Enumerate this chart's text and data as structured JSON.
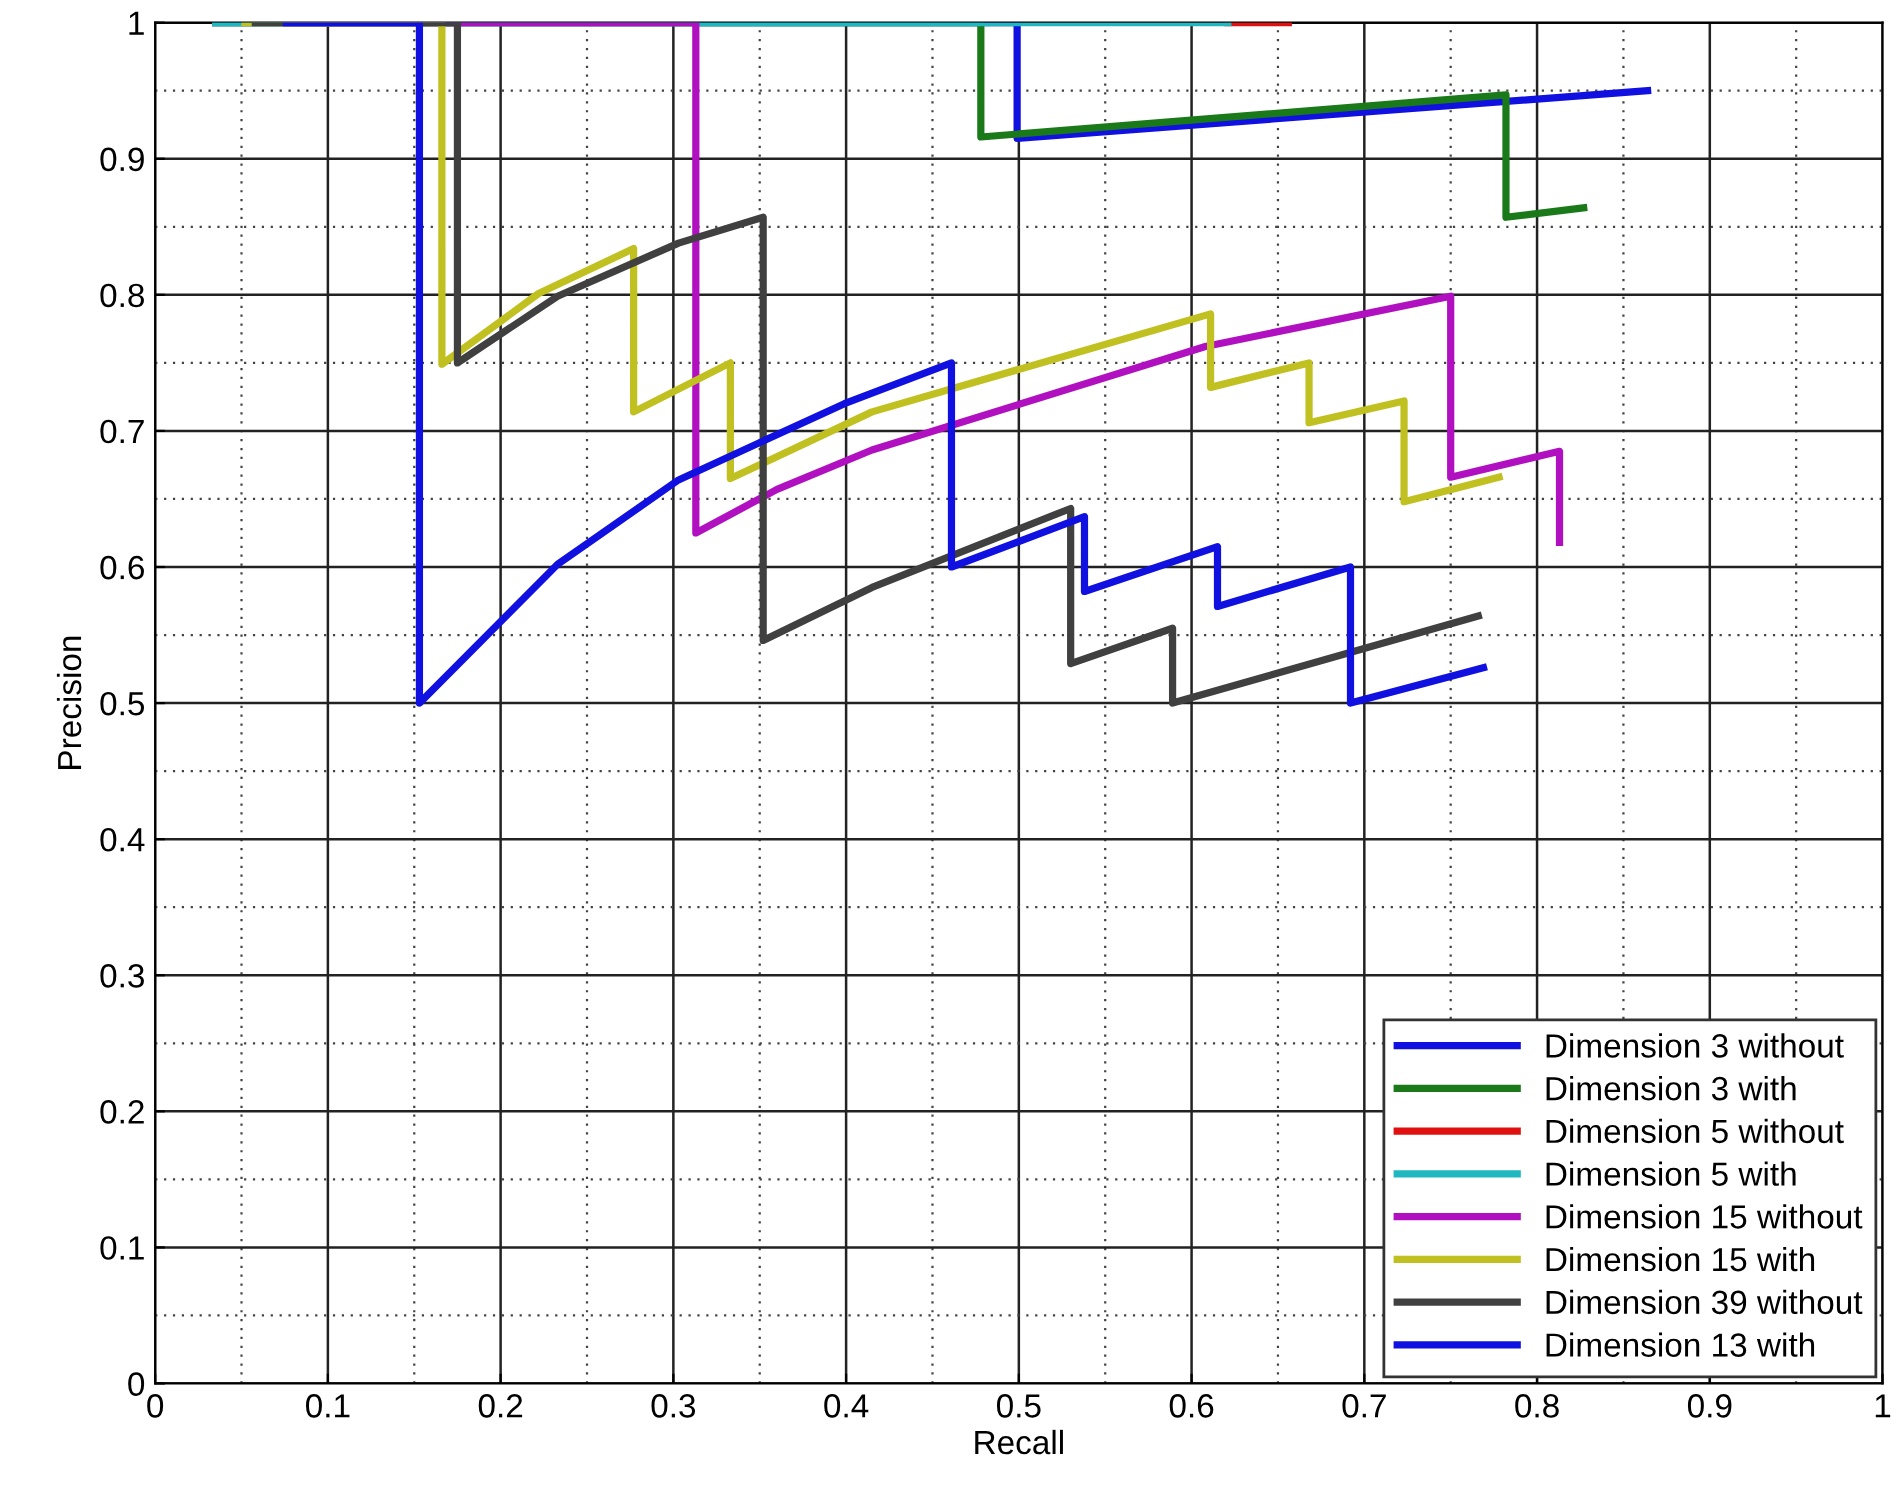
{
  "chart_data": {
    "type": "line",
    "xlabel": "Recall",
    "ylabel": "Precision",
    "xlim": [
      0,
      1
    ],
    "ylim": [
      0,
      1
    ],
    "xticks": [
      0,
      0.1,
      0.2,
      0.3,
      0.4,
      0.5,
      0.6,
      0.7,
      0.8,
      0.9,
      1
    ],
    "yticks": [
      0,
      0.1,
      0.2,
      0.3,
      0.4,
      0.5,
      0.6,
      0.7,
      0.8,
      0.9,
      1
    ],
    "grid": true,
    "legend": "bottom right",
    "marker": "none",
    "line_style": "solid",
    "series": [
      {
        "name": "Dimension 3 without",
        "color": "#1010e0",
        "x": [
          0.035,
          0.499,
          0.499,
          0.864
        ],
        "values": [
          1,
          1,
          0.915,
          0.95
        ]
      },
      {
        "name": "Dimension 3 with",
        "color": "#1a7a1a",
        "x": [
          0.035,
          0.478,
          0.478,
          0.782,
          0.782,
          0.827
        ],
        "values": [
          1,
          1,
          0.916,
          0.947,
          0.857,
          0.864
        ]
      },
      {
        "name": "Dimension 5 without",
        "color": "#e01010",
        "x": [
          0.621,
          0.656
        ],
        "values": [
          1,
          1
        ]
      },
      {
        "name": "Dimension 5 with",
        "color": "#20b8c0",
        "x": [
          0.035,
          0.621
        ],
        "values": [
          1,
          1
        ]
      },
      {
        "name": "Dimension 15 without",
        "color": "#b010c0",
        "x": [
          0.076,
          0.313,
          0.313,
          0.36,
          0.415,
          0.608,
          0.75,
          0.75,
          0.813,
          0.813
        ],
        "values": [
          1,
          1,
          0.625,
          0.657,
          0.686,
          0.762,
          0.799,
          0.666,
          0.685,
          0.618
        ]
      },
      {
        "name": "Dimension 15 with",
        "color": "#c0c020",
        "x": [
          0.052,
          0.166,
          0.166,
          0.222,
          0.277,
          0.277,
          0.333,
          0.333,
          0.415,
          0.611,
          0.611,
          0.668,
          0.668,
          0.723,
          0.723,
          0.778
        ],
        "values": [
          1,
          1,
          0.749,
          0.801,
          0.834,
          0.714,
          0.75,
          0.665,
          0.714,
          0.786,
          0.732,
          0.75,
          0.706,
          0.722,
          0.648,
          0.666
        ]
      },
      {
        "name": "Dimension 39 without",
        "color": "#404040",
        "x": [
          0.058,
          0.175,
          0.175,
          0.233,
          0.303,
          0.352,
          0.352,
          0.415,
          0.53,
          0.53,
          0.589,
          0.589,
          0.766
        ],
        "values": [
          1,
          1,
          0.75,
          0.799,
          0.838,
          0.857,
          0.546,
          0.585,
          0.643,
          0.529,
          0.555,
          0.5,
          0.564
        ]
      },
      {
        "name": "Dimension 13 with",
        "color": "#1010e0",
        "x": [
          0.076,
          0.153,
          0.153,
          0.233,
          0.303,
          0.399,
          0.461,
          0.461,
          0.538,
          0.538,
          0.615,
          0.615,
          0.692,
          0.692,
          0.769
        ],
        "values": [
          1,
          1,
          0.5,
          0.602,
          0.664,
          0.72,
          0.75,
          0.6,
          0.637,
          0.582,
          0.615,
          0.571,
          0.6,
          0.5,
          0.526
        ]
      }
    ]
  }
}
